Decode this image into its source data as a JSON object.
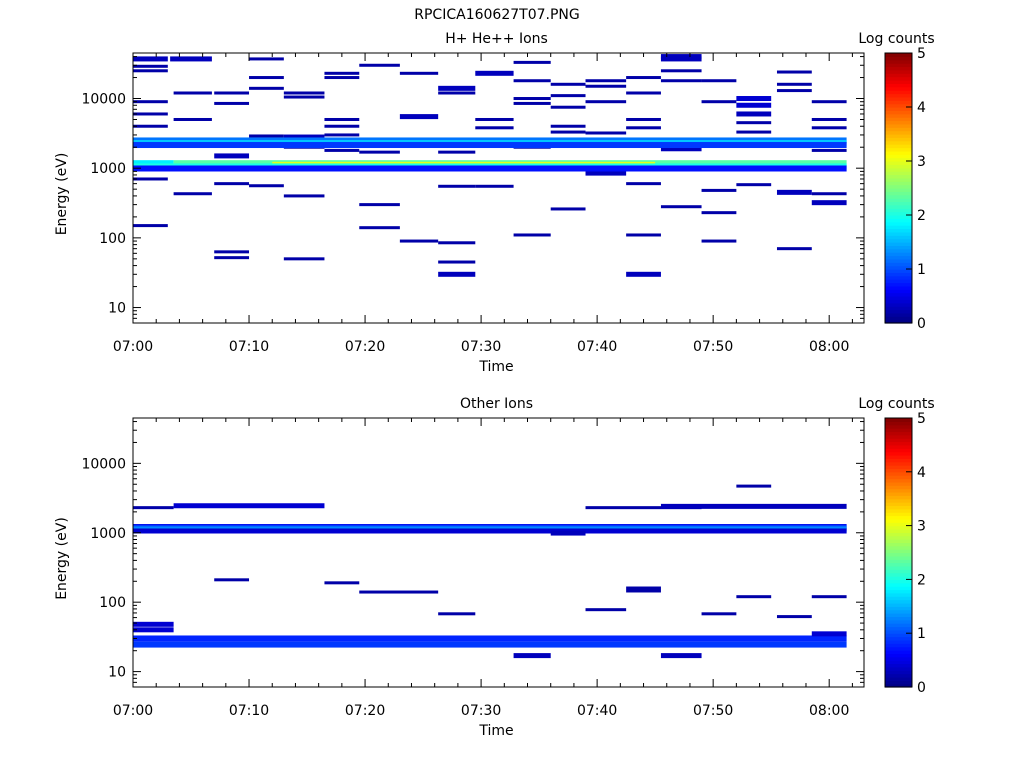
{
  "figure": {
    "title": "RPCICA160627T07.PNG"
  },
  "colorbar": {
    "stops": [
      "#00007f",
      "#0000ff",
      "#007fff",
      "#00ffff",
      "#7fff7f",
      "#ffff00",
      "#ff7f00",
      "#ff0000",
      "#7f0000"
    ]
  },
  "chart_data": [
    {
      "type": "heatmap",
      "title": "H+ He++ Ions",
      "xlabel": "Time",
      "ylabel": "Energy (eV)",
      "colorbar_label": "Log counts",
      "colorbar_ticks": [
        "0",
        "1",
        "2",
        "3",
        "4",
        "5"
      ],
      "clim": [
        0,
        5
      ],
      "x_ticks": [
        "07:00",
        "07:10",
        "07:20",
        "07:30",
        "07:40",
        "07:50",
        "08:00"
      ],
      "y_ticks": [
        "10",
        "100",
        "1000",
        "10000"
      ],
      "y_scale": "log",
      "xlim_minutes": [
        0,
        63
      ],
      "ylim": [
        6,
        45000
      ],
      "bins": [
        [
          0,
          3,
          37000,
          0.3
        ],
        [
          3.2,
          6.8,
          37000,
          0.3
        ],
        [
          10,
          13,
          37000,
          0.2
        ],
        [
          45.5,
          49,
          40000,
          0.3
        ],
        [
          45.5,
          49,
          37000,
          0.3
        ],
        [
          0,
          3,
          29000,
          0.2
        ],
        [
          0,
          3,
          25000,
          0.2
        ],
        [
          0,
          3,
          9000,
          0.2
        ],
        [
          0,
          3,
          6000,
          0.2
        ],
        [
          0,
          3,
          4000,
          0.2
        ],
        [
          0,
          3,
          700,
          0.2
        ],
        [
          0,
          3,
          150,
          0.2
        ],
        [
          3.5,
          6.8,
          12000,
          0.2
        ],
        [
          3.5,
          6.8,
          5000,
          0.2
        ],
        [
          3.5,
          6.8,
          430,
          0.2
        ],
        [
          7,
          10,
          12000,
          0.2
        ],
        [
          7,
          10,
          8500,
          0.2
        ],
        [
          7,
          10,
          1500,
          0.3
        ],
        [
          7,
          10,
          600,
          0.2
        ],
        [
          7,
          10,
          63,
          0.2
        ],
        [
          7,
          10,
          52,
          0.2
        ],
        [
          10,
          13,
          20000,
          0.2
        ],
        [
          10,
          13,
          14000,
          0.2
        ],
        [
          10,
          13,
          2900,
          0.2
        ],
        [
          10,
          13,
          560,
          0.2
        ],
        [
          13,
          16.5,
          12000,
          0.2
        ],
        [
          13,
          16.5,
          10500,
          0.2
        ],
        [
          13,
          16.5,
          2800,
          0.3
        ],
        [
          13,
          16.5,
          2000,
          0.2
        ],
        [
          13,
          16.5,
          400,
          0.2
        ],
        [
          13,
          16.5,
          50,
          0.2
        ],
        [
          16.5,
          19.5,
          23000,
          0.2
        ],
        [
          16.5,
          19.5,
          20000,
          0.2
        ],
        [
          16.5,
          19.5,
          5000,
          0.2
        ],
        [
          16.5,
          19.5,
          4000,
          0.2
        ],
        [
          16.5,
          19.5,
          3000,
          0.2
        ],
        [
          16.5,
          19.5,
          2300,
          0.3
        ],
        [
          16.5,
          19.5,
          1800,
          0.2
        ],
        [
          19.5,
          23,
          30000,
          0.2
        ],
        [
          19.5,
          23,
          1700,
          0.2
        ],
        [
          19.5,
          23,
          300,
          0.2
        ],
        [
          19.5,
          23,
          140,
          0.2
        ],
        [
          23,
          26.3,
          23000,
          0.2
        ],
        [
          23,
          26.3,
          5500,
          0.3
        ],
        [
          23,
          26.3,
          90,
          0.2
        ],
        [
          26.3,
          29.5,
          14000,
          0.3
        ],
        [
          26.3,
          29.5,
          12000,
          0.2
        ],
        [
          26.3,
          29.5,
          1700,
          0.2
        ],
        [
          26.3,
          29.5,
          550,
          0.2
        ],
        [
          26.3,
          29.5,
          85,
          0.2
        ],
        [
          26.3,
          29.5,
          45,
          0.2
        ],
        [
          26.3,
          29.5,
          30,
          0.3
        ],
        [
          29.5,
          32.8,
          23000,
          0.3
        ],
        [
          29.5,
          32.8,
          5000,
          0.2
        ],
        [
          29.5,
          32.8,
          3800,
          0.2
        ],
        [
          29.5,
          32.8,
          550,
          0.2
        ],
        [
          32.8,
          36,
          33000,
          0.2
        ],
        [
          32.8,
          36,
          18000,
          0.2
        ],
        [
          32.8,
          36,
          10000,
          0.2
        ],
        [
          32.8,
          36,
          8500,
          0.2
        ],
        [
          32.8,
          36,
          2000,
          0.2
        ],
        [
          32.8,
          36,
          110,
          0.2
        ],
        [
          36,
          39,
          16000,
          0.2
        ],
        [
          36,
          39,
          11000,
          0.2
        ],
        [
          36,
          39,
          7500,
          0.2
        ],
        [
          36,
          39,
          4000,
          0.2
        ],
        [
          36,
          39,
          3300,
          0.2
        ],
        [
          36,
          39,
          2300,
          0.2
        ],
        [
          36,
          39,
          260,
          0.2
        ],
        [
          39,
          42.5,
          18000,
          0.2
        ],
        [
          39,
          42.5,
          15000,
          0.2
        ],
        [
          39,
          42.5,
          9000,
          0.2
        ],
        [
          39,
          42.5,
          3200,
          0.2
        ],
        [
          39,
          42.5,
          850,
          0.3
        ],
        [
          42.5,
          45.5,
          20000,
          0.2
        ],
        [
          42.5,
          45.5,
          12000,
          0.2
        ],
        [
          42.5,
          45.5,
          5000,
          0.2
        ],
        [
          42.5,
          45.5,
          3800,
          0.2
        ],
        [
          42.5,
          45.5,
          600,
          0.2
        ],
        [
          42.5,
          45.5,
          110,
          0.2
        ],
        [
          42.5,
          45.5,
          30,
          0.3
        ],
        [
          45.5,
          49,
          25000,
          0.2
        ],
        [
          45.5,
          49,
          18000,
          0.2
        ],
        [
          45.5,
          49,
          1900,
          0.3
        ],
        [
          45.5,
          49,
          280,
          0.2
        ],
        [
          49,
          52,
          18000,
          0.2
        ],
        [
          49,
          52,
          9000,
          0.2
        ],
        [
          49,
          52,
          480,
          0.2
        ],
        [
          49,
          52,
          230,
          0.2
        ],
        [
          49,
          52,
          90,
          0.2
        ],
        [
          52,
          55,
          10000,
          0.4
        ],
        [
          52,
          55,
          8000,
          0.4
        ],
        [
          52,
          55,
          6000,
          0.3
        ],
        [
          52,
          55,
          4500,
          0.2
        ],
        [
          52,
          55,
          3300,
          0.2
        ],
        [
          52,
          55,
          580,
          0.2
        ],
        [
          55.5,
          58.5,
          24000,
          0.2
        ],
        [
          55.5,
          58.5,
          16000,
          0.2
        ],
        [
          55.5,
          58.5,
          13000,
          0.2
        ],
        [
          55.5,
          58.5,
          450,
          0.3
        ],
        [
          55.5,
          58.5,
          70,
          0.2
        ],
        [
          58.5,
          61.5,
          9000,
          0.2
        ],
        [
          58.5,
          61.5,
          5000,
          0.2
        ],
        [
          58.5,
          61.5,
          3800,
          0.2
        ],
        [
          58.5,
          61.5,
          1800,
          0.2
        ],
        [
          58.5,
          61.5,
          430,
          0.2
        ],
        [
          58.5,
          61.5,
          320,
          0.3
        ],
        [
          0,
          61.5,
          2500,
          1.2
        ],
        [
          0,
          61.5,
          2300,
          1.6
        ],
        [
          0,
          61.5,
          2150,
          0.9
        ],
        [
          0,
          3.5,
          1180,
          1.8
        ],
        [
          3.5,
          61.5,
          1180,
          2.3
        ],
        [
          12,
          45,
          1120,
          3.0
        ],
        [
          0,
          61.5,
          1060,
          2.0
        ],
        [
          0,
          61.5,
          990,
          0.7
        ]
      ]
    },
    {
      "type": "heatmap",
      "title": "Other Ions",
      "xlabel": "Time",
      "ylabel": "Energy (eV)",
      "colorbar_label": "Log counts",
      "colorbar_ticks": [
        "0",
        "1",
        "2",
        "3",
        "4",
        "5"
      ],
      "clim": [
        0,
        5
      ],
      "x_ticks": [
        "07:00",
        "07:10",
        "07:20",
        "07:30",
        "07:40",
        "07:50",
        "08:00"
      ],
      "y_ticks": [
        "10",
        "100",
        "1000",
        "10000"
      ],
      "y_scale": "log",
      "xlim_minutes": [
        0,
        63
      ],
      "ylim": [
        6,
        45000
      ],
      "bins": [
        [
          0,
          3.5,
          2300,
          0.2
        ],
        [
          3.5,
          16.5,
          2450,
          0.4
        ],
        [
          39,
          49,
          2300,
          0.2
        ],
        [
          45.5,
          61.5,
          2400,
          0.3
        ],
        [
          52,
          55,
          4700,
          0.2
        ],
        [
          0,
          61.5,
          1230,
          0.5
        ],
        [
          0,
          61.5,
          1180,
          0.9
        ],
        [
          0,
          61.5,
          1120,
          1.3
        ],
        [
          0,
          61.5,
          1060,
          0.4
        ],
        [
          36,
          39,
          990,
          0.3
        ],
        [
          7,
          10,
          210,
          0.2
        ],
        [
          16.5,
          19.5,
          190,
          0.2
        ],
        [
          19.5,
          26.3,
          140,
          0.2
        ],
        [
          26.3,
          29.5,
          68,
          0.2
        ],
        [
          39,
          42.5,
          78,
          0.2
        ],
        [
          42.5,
          45.5,
          160,
          0.2
        ],
        [
          42.5,
          45.5,
          145,
          0.2
        ],
        [
          49,
          52,
          68,
          0.2
        ],
        [
          52,
          55,
          120,
          0.2
        ],
        [
          55.5,
          58.5,
          62,
          0.2
        ],
        [
          58.5,
          61.5,
          120,
          0.2
        ],
        [
          0,
          3.5,
          48,
          0.4
        ],
        [
          0,
          3.5,
          40,
          0.4
        ],
        [
          0,
          61.5,
          30,
          0.8
        ],
        [
          0,
          61.5,
          24.5,
          0.9
        ],
        [
          32.8,
          36,
          17,
          0.3
        ],
        [
          45.5,
          49,
          17,
          0.3
        ],
        [
          58.5,
          61.5,
          35,
          0.4
        ]
      ]
    }
  ]
}
